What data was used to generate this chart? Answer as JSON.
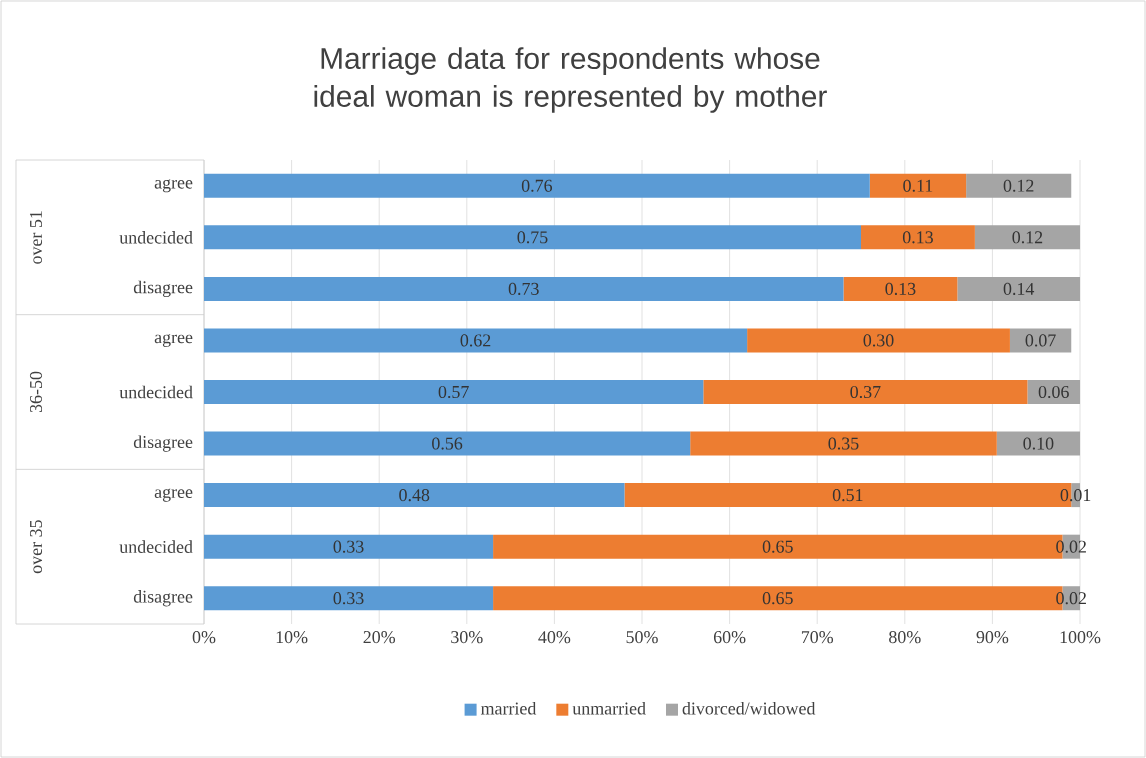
{
  "chart_data": {
    "type": "bar",
    "orientation": "horizontal",
    "stacked": true,
    "title": "Marriage data for respondents whose ideal woman is represented by mother",
    "categories": [
      "agree",
      "undecided",
      "disagree",
      "agree",
      "undecided",
      "disagree",
      "agree",
      "undecided",
      "disagree"
    ],
    "series": [
      {
        "name": "married",
        "color": "#5b9bd5",
        "values": [
          0.76,
          0.75,
          0.73,
          0.62,
          0.57,
          0.555,
          0.48,
          0.33,
          0.33
        ],
        "value_labels": [
          "0.76",
          "0.75",
          "0.73",
          "0.62",
          "0.57",
          "0.56",
          "0.48",
          "0.33",
          "0.33"
        ]
      },
      {
        "name": "unmarried",
        "color": "#ed7d31",
        "values": [
          0.11,
          0.13,
          0.13,
          0.3,
          0.37,
          0.35,
          0.51,
          0.65,
          0.65
        ],
        "value_labels": [
          "0.11",
          "0.13",
          "0.13",
          "0.30",
          "0.37",
          "0.35",
          "0.51",
          "0.65",
          "0.65"
        ]
      },
      {
        "name": "divorced/widowed",
        "color": "#a5a5a5",
        "values": [
          0.12,
          0.12,
          0.14,
          0.07,
          0.06,
          0.095,
          0.01,
          0.02,
          0.02
        ],
        "value_labels": [
          "0.12",
          "0.12",
          "0.14",
          "0.07",
          "0.06",
          "0.10",
          "0.01",
          "0.02",
          "0.02"
        ]
      }
    ],
    "xlim": [
      0,
      1
    ],
    "xticks": [
      {
        "value": 0,
        "label": "0%"
      },
      {
        "value": 0.1,
        "label": "10%"
      },
      {
        "value": 0.2,
        "label": "20%"
      },
      {
        "value": 0.3,
        "label": "30%"
      },
      {
        "value": 0.4,
        "label": "40%"
      },
      {
        "value": 0.5,
        "label": "50%"
      },
      {
        "value": 0.6,
        "label": "60%"
      },
      {
        "value": 0.7,
        "label": "70%"
      },
      {
        "value": 0.8,
        "label": "80%"
      },
      {
        "value": 0.9,
        "label": "90%"
      },
      {
        "value": 1,
        "label": "100%"
      }
    ],
    "grid": "x",
    "legend": "bottom",
    "annotations": [
      "over 51",
      "36-50",
      "over 35"
    ]
  }
}
